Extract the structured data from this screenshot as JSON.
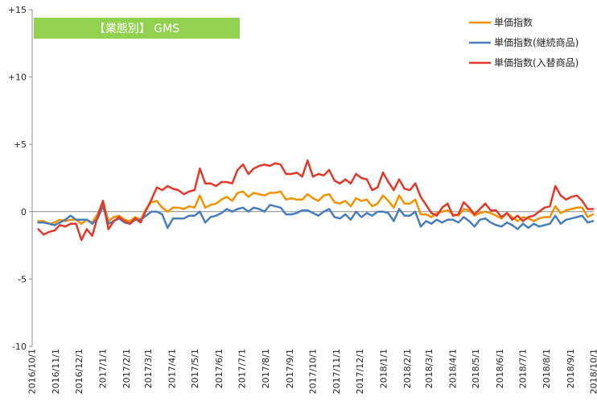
{
  "chart_data": {
    "type": "line",
    "title": "【業態別】 GMS",
    "title_box_color": "#92D050",
    "legend": "top-right",
    "grid": false,
    "ylim": [
      -10,
      15
    ],
    "xlim": [
      "2016/10/1",
      "2018/10/1"
    ],
    "y_ticks": [
      15,
      10,
      5,
      0,
      -5,
      -10
    ],
    "y_tick_labels": [
      "+15",
      "+10",
      "+5",
      "0",
      "-5",
      "-10"
    ],
    "x_tick_labels": [
      "2016/10/1",
      "2016/11/1",
      "2016/12/1",
      "2017/1/1",
      "2017/2/1",
      "2017/3/1",
      "2017/4/1",
      "2017/5/1",
      "2017/6/1",
      "2017/7/1",
      "2017/8/1",
      "2017/9/1",
      "2017/10/1",
      "2017/11/1",
      "2017/12/1",
      "2018/1/1",
      "2018/2/1",
      "2018/3/1",
      "2018/4/1",
      "2018/5/1",
      "2018/6/1",
      "2018/7/1",
      "2018/8/1",
      "2018/9/1",
      "2018/10/1"
    ],
    "x": [
      "2016/10/9",
      "2016/10/16",
      "2016/10/23",
      "2016/10/30",
      "2016/11/6",
      "2016/11/13",
      "2016/11/20",
      "2016/11/27",
      "2016/12/4",
      "2016/12/11",
      "2016/12/18",
      "2016/12/25",
      "2017/1/1",
      "2017/1/8",
      "2017/1/15",
      "2017/1/22",
      "2017/1/29",
      "2017/2/5",
      "2017/2/12",
      "2017/2/19",
      "2017/2/26",
      "2017/3/5",
      "2017/3/12",
      "2017/3/19",
      "2017/3/26",
      "2017/4/2",
      "2017/4/9",
      "2017/4/16",
      "2017/4/23",
      "2017/4/30",
      "2017/5/7",
      "2017/5/14",
      "2017/5/21",
      "2017/5/28",
      "2017/6/4",
      "2017/6/11",
      "2017/6/18",
      "2017/6/25",
      "2017/7/2",
      "2017/7/9",
      "2017/7/16",
      "2017/7/23",
      "2017/7/30",
      "2017/8/6",
      "2017/8/13",
      "2017/8/20",
      "2017/8/27",
      "2017/9/3",
      "2017/9/10",
      "2017/9/17",
      "2017/9/24",
      "2017/10/1",
      "2017/10/8",
      "2017/10/15",
      "2017/10/22",
      "2017/10/29",
      "2017/11/5",
      "2017/11/12",
      "2017/11/19",
      "2017/11/26",
      "2017/12/3",
      "2017/12/10",
      "2017/12/17",
      "2017/12/24",
      "2017/12/31",
      "2018/1/7",
      "2018/1/14",
      "2018/1/21",
      "2018/1/28",
      "2018/2/4",
      "2018/2/11",
      "2018/2/18",
      "2018/2/25",
      "2018/3/4",
      "2018/3/11",
      "2018/3/18",
      "2018/3/25",
      "2018/4/1",
      "2018/4/8",
      "2018/4/15",
      "2018/4/22",
      "2018/4/29",
      "2018/5/6",
      "2018/5/13",
      "2018/5/20",
      "2018/5/27",
      "2018/6/3",
      "2018/6/10",
      "2018/6/17",
      "2018/6/24",
      "2018/7/1",
      "2018/7/8",
      "2018/7/15",
      "2018/7/22",
      "2018/7/29",
      "2018/8/5",
      "2018/8/12",
      "2018/8/19",
      "2018/8/26",
      "2018/9/2",
      "2018/9/9",
      "2018/9/16",
      "2018/9/23",
      "2018/9/30"
    ],
    "series": [
      {
        "name": "単価指数",
        "color": "#F39200",
        "values": [
          -0.7,
          -0.7,
          -0.9,
          -0.8,
          -0.6,
          -0.7,
          -0.6,
          -0.6,
          -0.9,
          -0.6,
          -0.8,
          -0.2,
          0.8,
          -0.7,
          -0.4,
          -0.3,
          -0.6,
          -0.7,
          -0.4,
          -0.6,
          0.2,
          0.7,
          0.8,
          0.3,
          0.0,
          0.3,
          0.3,
          0.2,
          0.4,
          0.3,
          1.2,
          0.3,
          0.5,
          0.6,
          0.9,
          1.1,
          0.8,
          1.4,
          1.5,
          1.1,
          1.4,
          1.3,
          1.2,
          1.4,
          1.4,
          1.5,
          0.9,
          1.0,
          0.9,
          0.9,
          1.3,
          1.0,
          0.8,
          1.2,
          1.3,
          0.7,
          0.6,
          0.8,
          0.4,
          1.0,
          0.8,
          0.9,
          0.4,
          0.6,
          1.2,
          0.8,
          0.3,
          1.2,
          0.6,
          0.6,
          0.9,
          -0.2,
          -0.2,
          -0.4,
          -0.1,
          0.0,
          0.1,
          -0.2,
          -0.3,
          0.2,
          0.1,
          -0.3,
          -0.1,
          0.0,
          -0.1,
          -0.3,
          -0.5,
          -0.1,
          -0.4,
          -0.7,
          -0.4,
          -0.5,
          -0.7,
          -0.5,
          -0.4,
          -0.4,
          0.4,
          -0.1,
          0.1,
          0.2,
          0.3,
          0.3,
          -0.4,
          -0.2
        ]
      },
      {
        "name": "単価指数(継続商品)",
        "color": "#4A7EBB",
        "values": [
          -0.8,
          -0.8,
          -0.9,
          -1.0,
          -0.8,
          -0.6,
          -0.3,
          -0.6,
          -0.6,
          -0.6,
          -0.9,
          -0.5,
          0.4,
          -0.9,
          -0.7,
          -0.5,
          -0.8,
          -0.9,
          -0.6,
          -0.6,
          -0.3,
          0.0,
          0.0,
          -0.2,
          -1.2,
          -0.5,
          -0.5,
          -0.5,
          -0.3,
          -0.3,
          0.0,
          -0.8,
          -0.4,
          -0.3,
          -0.1,
          0.2,
          0.0,
          0.2,
          0.3,
          0.0,
          0.3,
          0.2,
          0.0,
          0.5,
          0.4,
          0.3,
          -0.2,
          -0.2,
          -0.1,
          0.1,
          0.1,
          -0.1,
          -0.3,
          0.0,
          0.2,
          -0.4,
          -0.5,
          -0.2,
          -0.6,
          0.0,
          -0.4,
          -0.1,
          -0.3,
          0.0,
          0.0,
          -0.1,
          -0.7,
          0.2,
          -0.3,
          -0.3,
          0.0,
          -1.1,
          -0.7,
          -0.9,
          -0.6,
          -0.8,
          -0.6,
          -0.6,
          -0.8,
          -0.4,
          -0.7,
          -1.1,
          -0.6,
          -0.5,
          -0.8,
          -1.0,
          -1.1,
          -0.8,
          -1.0,
          -1.3,
          -0.9,
          -1.2,
          -0.9,
          -1.1,
          -1.0,
          -0.9,
          -0.3,
          -0.9,
          -0.6,
          -0.5,
          -0.4,
          -0.3,
          -0.8,
          -0.7
        ]
      },
      {
        "name": "単価指数(入替商品)",
        "color": "#E2382B",
        "values": [
          -1.3,
          -1.7,
          -1.5,
          -1.4,
          -1.0,
          -1.1,
          -0.9,
          -0.9,
          -2.1,
          -1.3,
          -1.8,
          -0.4,
          0.8,
          -1.3,
          -0.7,
          -0.4,
          -0.7,
          -0.9,
          -0.5,
          -0.8,
          0.1,
          0.9,
          1.8,
          1.6,
          1.9,
          1.7,
          1.6,
          1.3,
          1.5,
          1.6,
          3.2,
          2.1,
          2.1,
          1.9,
          2.2,
          2.2,
          2.1,
          3.1,
          3.5,
          2.8,
          3.2,
          3.4,
          3.5,
          3.4,
          3.6,
          3.5,
          2.8,
          2.8,
          2.9,
          2.6,
          3.8,
          2.6,
          2.8,
          2.7,
          3.1,
          2.3,
          2.1,
          2.4,
          2.1,
          2.8,
          2.5,
          2.4,
          1.6,
          1.8,
          2.9,
          2.2,
          1.6,
          2.4,
          1.7,
          1.6,
          2.1,
          1.1,
          0.5,
          -0.1,
          -0.3,
          0.3,
          0.6,
          -0.3,
          -0.2,
          0.7,
          0.3,
          -0.2,
          0.2,
          0.6,
          0.1,
          0.1,
          -0.4,
          -0.1,
          -0.6,
          -0.3,
          -0.7,
          -0.4,
          -0.3,
          0.0,
          0.3,
          0.4,
          1.9,
          1.2,
          0.9,
          1.1,
          1.2,
          0.8,
          0.2,
          0.2
        ]
      }
    ]
  }
}
